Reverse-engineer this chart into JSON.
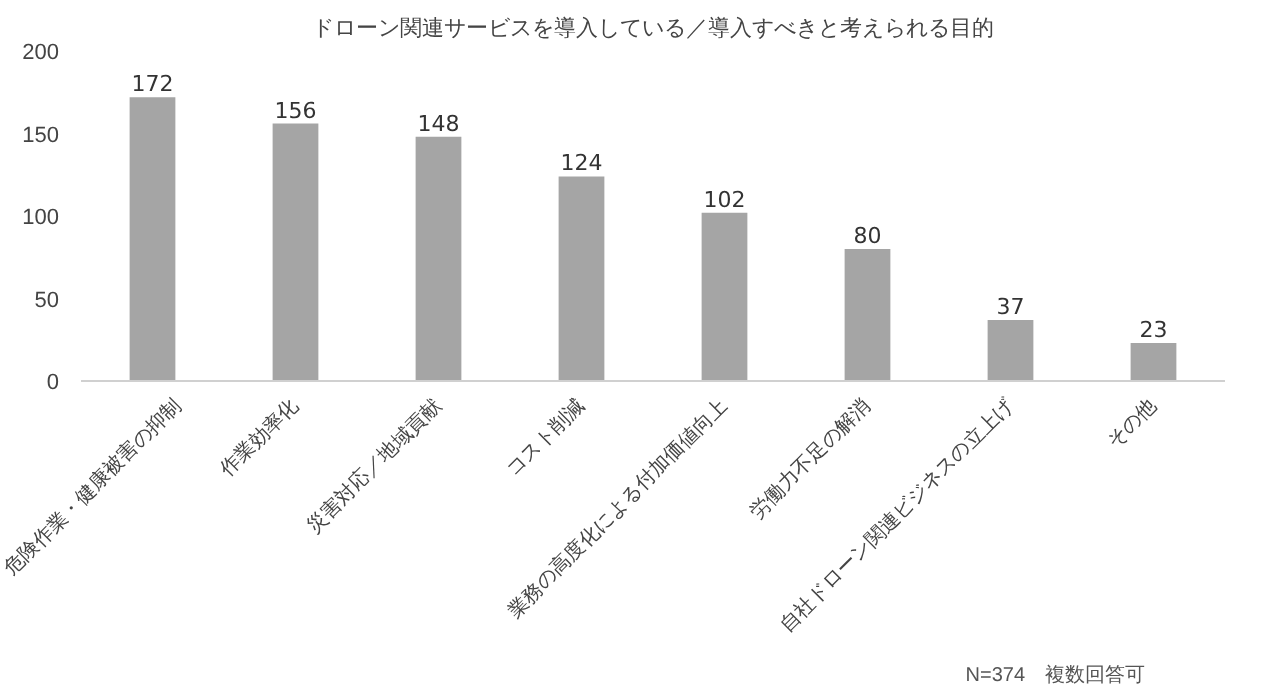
{
  "chart_data": {
    "type": "bar",
    "title": "ドローン関連サービスを導入している／導入すべきと考えられる目的",
    "categories": [
      "危険作業・健康被害の抑制",
      "作業効率化",
      "災害対応／地域貢献",
      "コスト削減",
      "業務の高度化による付加価値向上",
      "労働力不足の解消",
      "自社ドローン関連ビジネスの立上げ",
      "その他"
    ],
    "values": [
      172,
      156,
      148,
      124,
      102,
      80,
      37,
      23
    ],
    "color": "#a5a5a5",
    "ylim": [
      0,
      200
    ],
    "yticks": [
      0,
      50,
      100,
      150,
      200
    ],
    "grid": false,
    "data_labels": true,
    "annotations": [
      "N=374　複数回答可"
    ]
  }
}
